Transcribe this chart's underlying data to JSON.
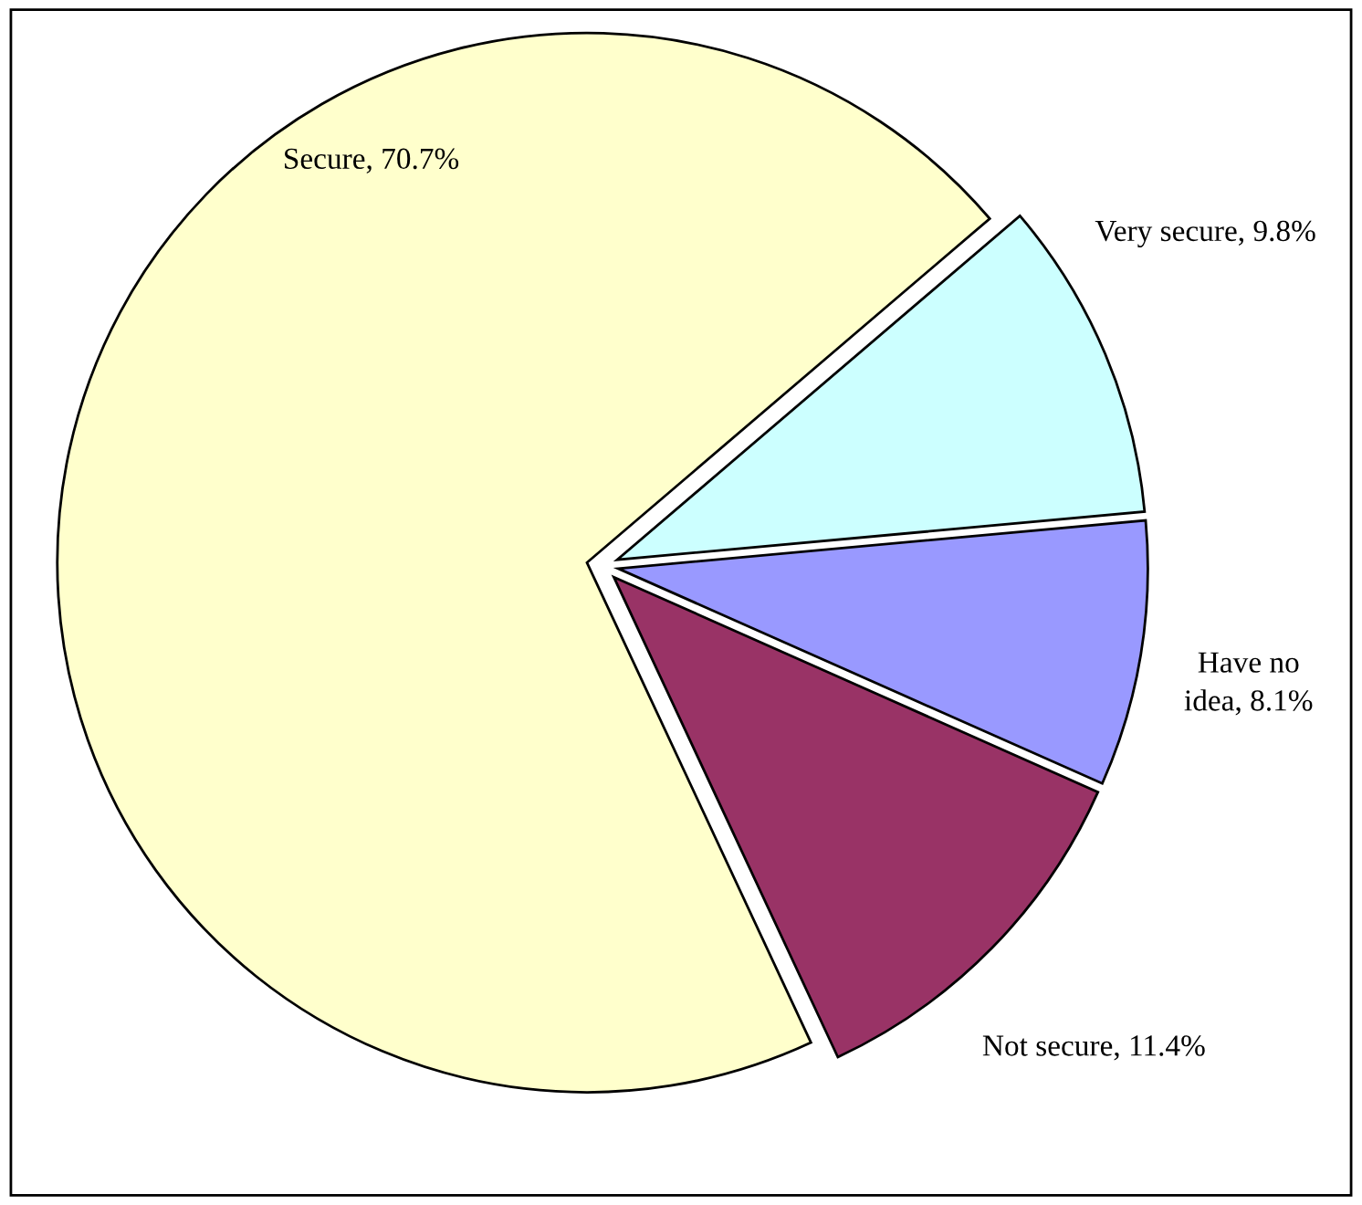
{
  "chart_data": {
    "type": "pie",
    "categories": [
      "Very secure",
      "Have no\nidea",
      "Not secure",
      "Secure"
    ],
    "values": [
      9.8,
      8.1,
      11.4,
      70.7
    ],
    "value_labels": [
      "9.8%",
      "8.1%",
      "11.4%",
      "70.7%"
    ],
    "colors": [
      "#ccffff",
      "#9999ff",
      "#993366",
      "#ffffcc"
    ],
    "legend": false
  }
}
